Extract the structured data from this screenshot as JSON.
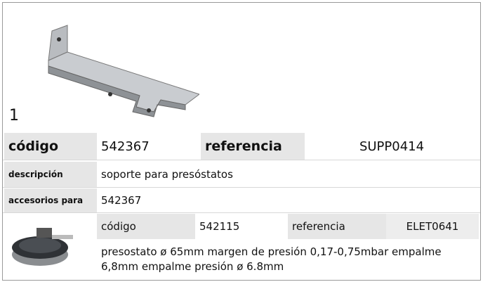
{
  "image_label": "1",
  "product": {
    "codigo_label": "código",
    "codigo": "542367",
    "referencia_label": "referencia",
    "referencia": "SUPP0414"
  },
  "descripcion": {
    "label": "descripción",
    "text": "soporte  para presóstatos"
  },
  "accesorios": {
    "label": "accesorios para",
    "text": "542367"
  },
  "accessory": {
    "codigo_label": "código",
    "codigo": "542115",
    "referencia_label": "referencia",
    "referencia": "ELET0641",
    "description": "presostato  ø 65mm margen de presión 0,17-0,75mbar empalme 6,8mm empalme presión ø 6.8mm"
  }
}
